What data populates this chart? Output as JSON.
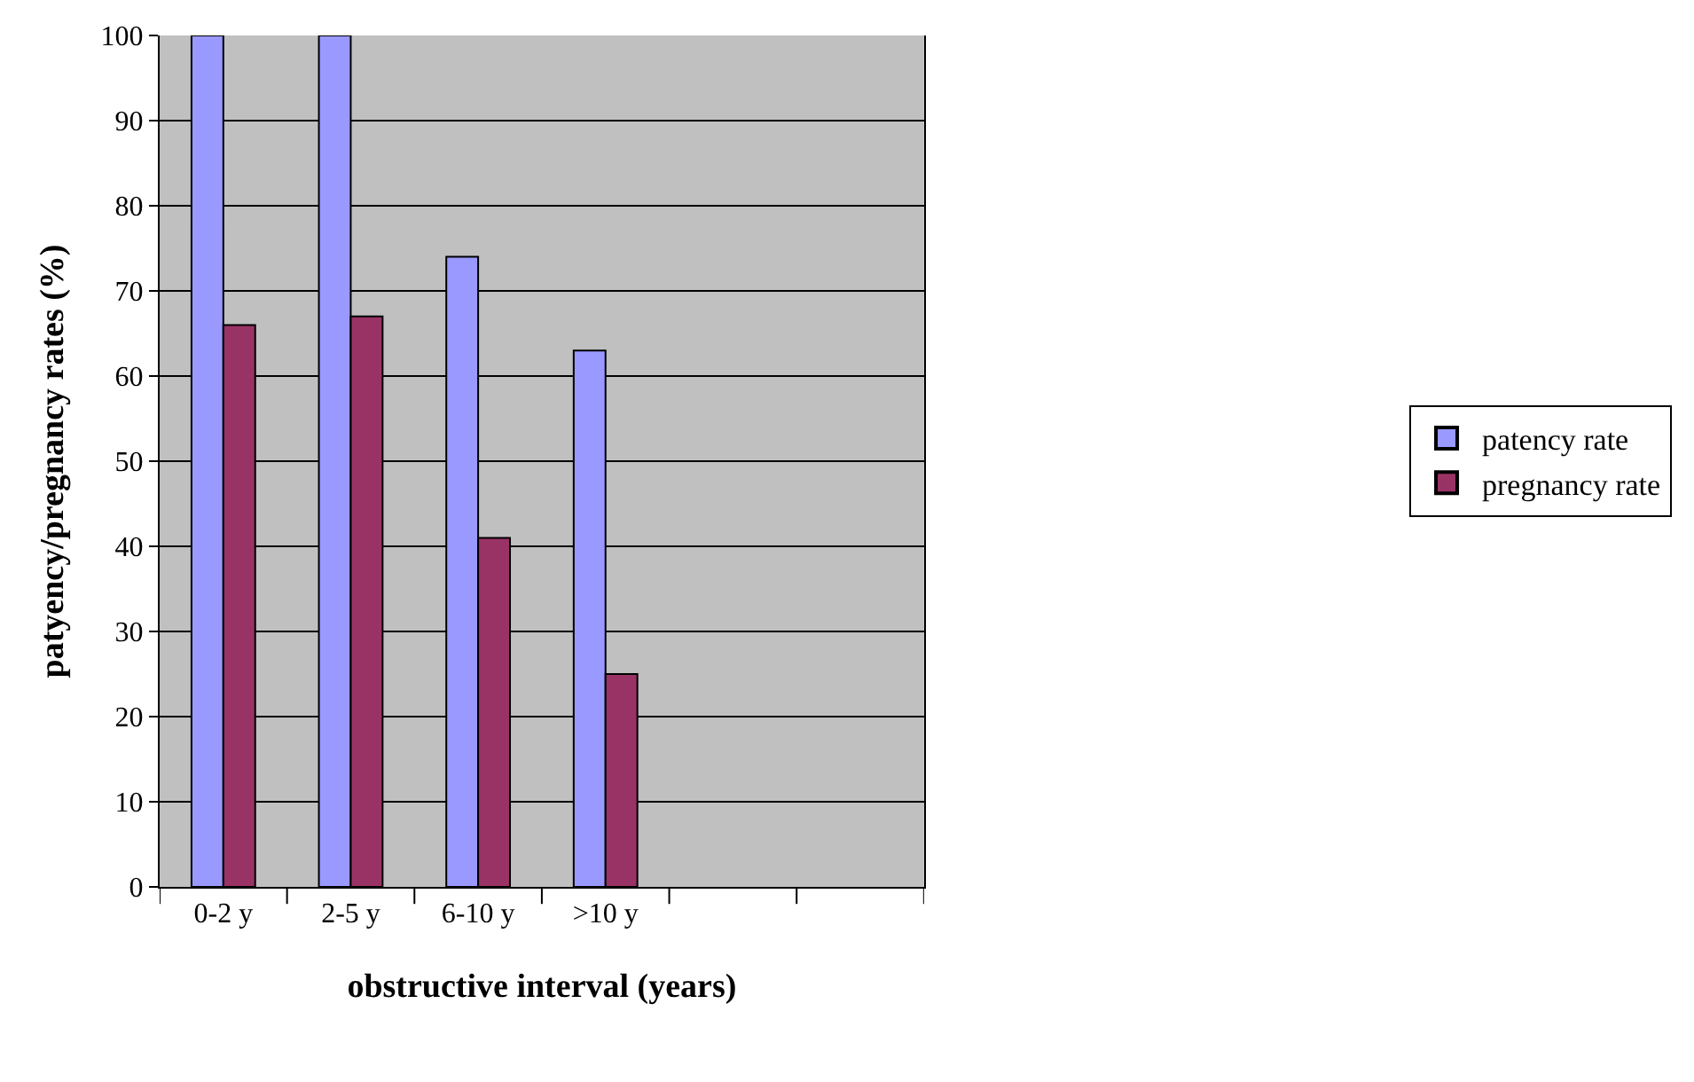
{
  "chart_data": {
    "type": "bar",
    "xlabel": "obstructive interval (years)",
    "ylabel": "patyency/pregnancy rates (%)",
    "categories": [
      "0-2 y",
      "2-5 y",
      "6-10 y",
      ">10 y",
      null,
      null
    ],
    "series": [
      {
        "name": "patency rate",
        "color": "#9999ff",
        "values": [
          100,
          100,
          74,
          63,
          null,
          null
        ]
      },
      {
        "name": "pregnancy rate",
        "color": "#993366",
        "values": [
          66,
          67,
          41,
          25,
          null,
          null
        ]
      }
    ],
    "ylim": [
      0,
      100
    ],
    "yticks": [
      0,
      10,
      20,
      30,
      40,
      50,
      60,
      70,
      80,
      90,
      100
    ],
    "grid": "y",
    "legend": "right"
  }
}
